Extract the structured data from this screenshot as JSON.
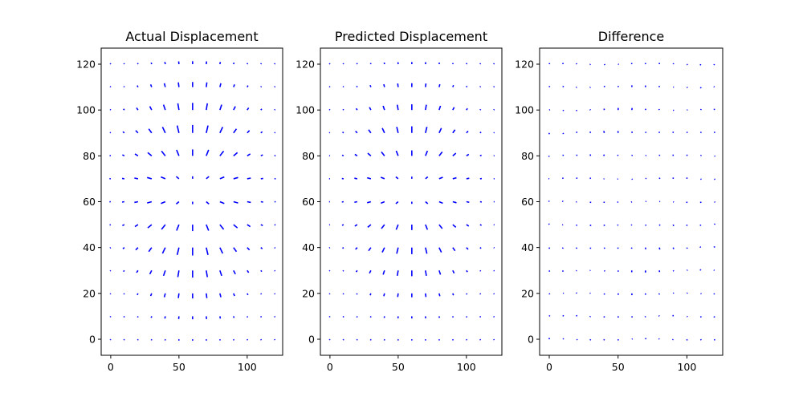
{
  "chart_data": [
    {
      "type": "quiver",
      "title": "Actual Displacement",
      "xlabel": "",
      "ylabel": "",
      "xlim": [
        -7,
        126
      ],
      "ylim": [
        -7,
        127
      ],
      "xticks": [
        0,
        50,
        100
      ],
      "yticks": [
        0,
        20,
        40,
        60,
        80,
        100,
        120
      ],
      "color": "#0000ff",
      "grid": false,
      "field": "radial_falloff",
      "center": [
        60,
        65
      ],
      "gain": 0.22,
      "sigma": 26
    },
    {
      "type": "quiver",
      "title": "Predicted Displacement",
      "xlabel": "",
      "ylabel": "",
      "xlim": [
        -7,
        126
      ],
      "ylim": [
        -7,
        127
      ],
      "xticks": [
        0,
        50,
        100
      ],
      "yticks": [
        0,
        20,
        40,
        60,
        80,
        100,
        120
      ],
      "color": "#0000ff",
      "grid": false,
      "field": "radial_falloff",
      "center": [
        60,
        65
      ],
      "gain": 0.19,
      "sigma": 25
    },
    {
      "type": "quiver",
      "title": "Difference",
      "xlabel": "",
      "ylabel": "",
      "xlim": [
        -7,
        126
      ],
      "ylim": [
        -7,
        127
      ],
      "xticks": [
        0,
        50,
        100
      ],
      "yticks": [
        0,
        20,
        40,
        60,
        80,
        100,
        120
      ],
      "color": "#0000ff",
      "grid": false,
      "field": "radial_falloff_residual",
      "center": [
        60,
        65
      ],
      "gain": 0.03,
      "sigma": 26
    }
  ]
}
